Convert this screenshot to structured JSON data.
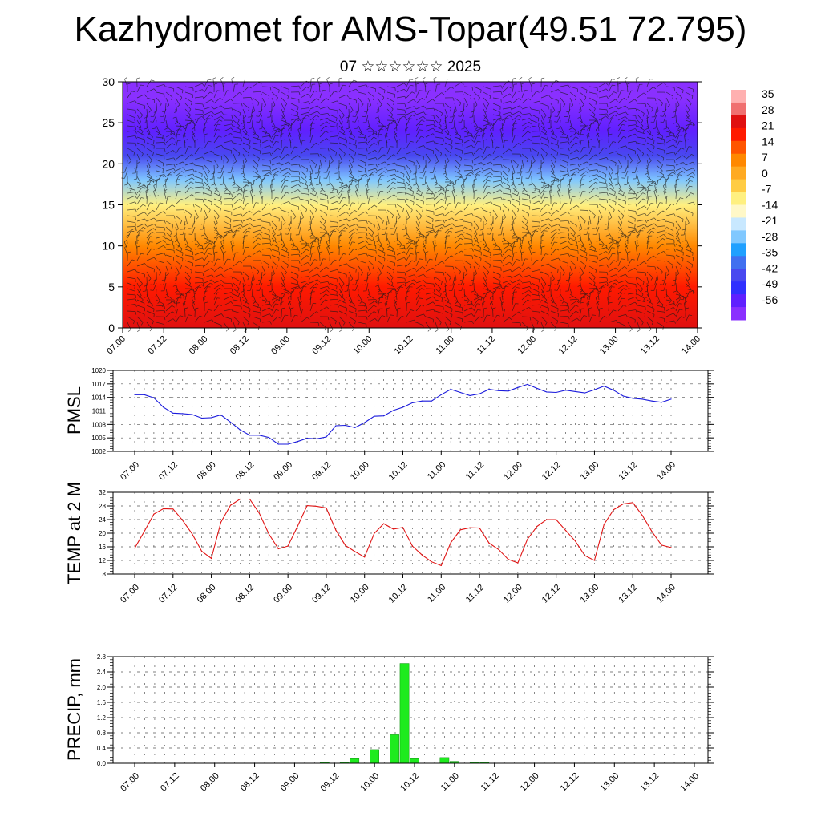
{
  "title": "Kazhydromet for AMS-Topar(49.51 72.795)",
  "subtitle": "07 ☆☆☆☆☆☆ 2025",
  "chart_data": [
    {
      "type": "heatmap",
      "name": "cross-section",
      "ylim": [
        0,
        30
      ],
      "y_ticks": [
        "0",
        "5",
        "10",
        "15",
        "20",
        "25",
        "30"
      ],
      "x_ticks": [
        "07.00",
        "07.12",
        "08.00",
        "08.12",
        "09.00",
        "09.12",
        "10.00",
        "10.12",
        "11.00",
        "11.12",
        "12.00",
        "12.12",
        "13.00",
        "13.12",
        "14.00"
      ],
      "colorbar": {
        "labels": [
          "35",
          "28",
          "21",
          "14",
          "7",
          "0",
          "-7",
          "-14",
          "-21",
          "-28",
          "-35",
          "-42",
          "-49",
          "-56"
        ],
        "colors": [
          "#ffb0b0",
          "#f07070",
          "#e01010",
          "#ff1a00",
          "#ff5500",
          "#ff8800",
          "#ffaa22",
          "#ffcc44",
          "#fff080",
          "#fff8c8",
          "#c8e8ff",
          "#80c8ff",
          "#20a0ff",
          "#4070f0",
          "#4848f0",
          "#3030ff",
          "#6020ff",
          "#8a30ff"
        ]
      },
      "background_profile": [
        {
          "z": 0,
          "value": 26
        },
        {
          "z": 5,
          "value": 20
        },
        {
          "z": 10,
          "value": 8
        },
        {
          "z": 15,
          "value": -10
        },
        {
          "z": 18,
          "value": -22
        },
        {
          "z": 21,
          "value": -40
        },
        {
          "z": 24,
          "value": -50
        },
        {
          "z": 28,
          "value": -56
        },
        {
          "z": 30,
          "value": -60
        }
      ],
      "overlay": "wind barbs"
    },
    {
      "type": "line",
      "name": "PMSL",
      "ylabel": "PMSL",
      "ylim": [
        1002,
        1020
      ],
      "y_ticks": [
        "1002",
        "1005",
        "1008",
        "1011",
        "1014",
        "1017",
        "1020"
      ],
      "x_ticks": [
        "07.00",
        "07.12",
        "08.00",
        "08.12",
        "09.00",
        "09.12",
        "10.00",
        "10.12",
        "11.00",
        "11.12",
        "12.00",
        "12.12",
        "13.00",
        "13.12",
        "14.00"
      ],
      "line_color": "#1a1adc",
      "x": [
        0,
        3,
        6,
        9,
        12,
        15,
        18,
        21,
        24,
        27,
        30,
        33,
        36,
        39,
        42,
        45,
        48,
        51,
        54,
        57,
        60,
        63,
        66,
        69,
        72,
        75,
        78,
        81,
        84,
        87,
        90,
        93,
        96,
        99,
        102,
        105,
        108,
        111,
        114,
        117,
        120,
        123,
        126,
        129,
        132,
        135,
        138,
        141,
        144,
        147,
        150,
        153,
        156,
        159,
        162,
        165,
        168
      ],
      "values": [
        1014.6,
        1014.6,
        1013.9,
        1011.8,
        1010.5,
        1010.4,
        1010.2,
        1009.4,
        1009.5,
        1010.1,
        1008.5,
        1006.8,
        1005.6,
        1005.6,
        1005.1,
        1003.6,
        1003.6,
        1004.2,
        1004.9,
        1004.8,
        1005.2,
        1007.7,
        1007.8,
        1007.3,
        1008.4,
        1009.8,
        1009.9,
        1011.1,
        1011.8,
        1012.8,
        1013.2,
        1013.2,
        1014.6,
        1015.8,
        1015.1,
        1014.4,
        1014.8,
        1015.8,
        1015.5,
        1015.4,
        1016.2,
        1016.9,
        1016.0,
        1015.2,
        1015.1,
        1015.6,
        1015.3,
        1015.0,
        1015.7,
        1016.5,
        1015.6,
        1014.3,
        1013.8,
        1013.6,
        1013.2,
        1012.9,
        1013.6
      ]
    },
    {
      "type": "line",
      "name": "TEMP",
      "ylabel": "TEMP at 2 M",
      "ylim": [
        8,
        32
      ],
      "y_ticks": [
        "8",
        "12",
        "16",
        "20",
        "24",
        "28",
        "32"
      ],
      "x_ticks": [
        "07.00",
        "07.12",
        "08.00",
        "08.12",
        "09.00",
        "09.12",
        "10.00",
        "10.12",
        "11.00",
        "11.12",
        "12.00",
        "12.12",
        "13.00",
        "13.12",
        "14.00"
      ],
      "line_color": "#e01414",
      "x": [
        0,
        3,
        6,
        9,
        12,
        15,
        18,
        21,
        24,
        27,
        30,
        33,
        36,
        39,
        42,
        45,
        48,
        51,
        54,
        57,
        60,
        63,
        66,
        69,
        72,
        75,
        78,
        81,
        84,
        87,
        90,
        93,
        96,
        99,
        102,
        105,
        108,
        111,
        114,
        117,
        120,
        123,
        126,
        129,
        132,
        135,
        138,
        141,
        144,
        147,
        150,
        153,
        156,
        159,
        162,
        165,
        168
      ],
      "values": [
        15.6,
        20.5,
        25.6,
        27.2,
        27.1,
        23.8,
        19.8,
        14.7,
        12.6,
        23.2,
        28.2,
        30.0,
        30.0,
        25.9,
        19.8,
        15.4,
        16.2,
        22.0,
        28.1,
        27.9,
        27.4,
        20.9,
        16.4,
        14.6,
        13.0,
        19.9,
        22.8,
        21.2,
        21.7,
        16.2,
        13.6,
        11.6,
        10.5,
        17.2,
        21.0,
        21.6,
        21.5,
        17.1,
        15.2,
        12.3,
        11.3,
        18.2,
        22.0,
        24.0,
        24.0,
        20.8,
        17.7,
        13.4,
        12.0,
        22.6,
        26.9,
        28.6,
        29.0,
        25.2,
        20.5,
        16.5,
        15.8
      ]
    },
    {
      "type": "bar",
      "name": "PRECIP",
      "ylabel": "PRECIP, mm",
      "ylim": [
        0,
        2.8
      ],
      "y_ticks": [
        "0.0",
        "0.4",
        "0.8",
        "1.2",
        "1.6",
        "2.0",
        "2.4",
        "2.8"
      ],
      "x_ticks": [
        "07.00",
        "07.12",
        "08.00",
        "08.12",
        "09.00",
        "09.12",
        "10.00",
        "10.12",
        "11.00",
        "11.12",
        "12.00",
        "12.12",
        "13.00",
        "13.12",
        "14.00"
      ],
      "bar_color": "#1eeb1e",
      "x": [
        57,
        63,
        66,
        72,
        78,
        81,
        84,
        93,
        96,
        102,
        105
      ],
      "values": [
        0.02,
        0.02,
        0.12,
        0.36,
        0.75,
        2.62,
        0.12,
        0.15,
        0.05,
        0.02,
        0.02
      ]
    }
  ]
}
